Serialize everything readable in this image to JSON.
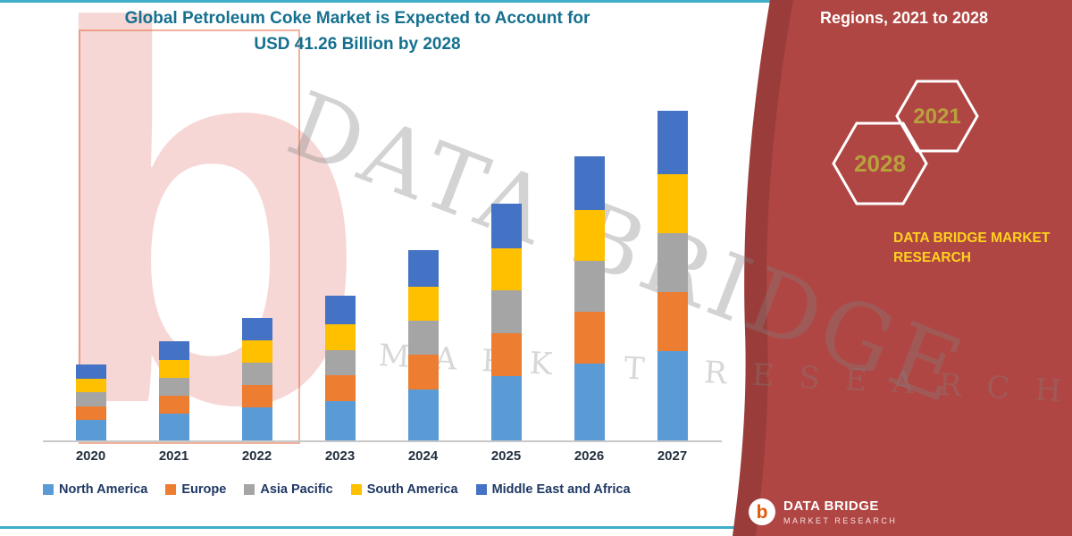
{
  "page": {
    "background": "#FFFFFF",
    "accent_line_color": "#3FAECB"
  },
  "title": {
    "line1": "Global Petroleum Coke Market is Expected to Account for",
    "line2": "USD 41.26 Billion by 2028",
    "color": "#15708F"
  },
  "chart_data": {
    "type": "bar",
    "stacked": true,
    "title": "Global Petroleum Coke Market is Expected to Account for USD 41.26 Billion by 2028",
    "categories": [
      "2020",
      "2021",
      "2022",
      "2023",
      "2024",
      "2025",
      "2026",
      "2027"
    ],
    "series": [
      {
        "name": "North America",
        "color": "#5B9BD5",
        "values": [
          2.4,
          3.1,
          3.9,
          4.6,
          6.0,
          7.5,
          9.0,
          10.4
        ]
      },
      {
        "name": "Europe",
        "color": "#ED7D31",
        "values": [
          1.6,
          2.1,
          2.6,
          3.0,
          4.0,
          5.0,
          6.0,
          6.9
        ]
      },
      {
        "name": "Asia Pacific",
        "color": "#A5A5A5",
        "values": [
          1.6,
          2.1,
          2.6,
          3.0,
          4.0,
          5.0,
          6.0,
          6.9
        ]
      },
      {
        "name": "South America",
        "color": "#FFC000",
        "values": [
          1.6,
          2.1,
          2.6,
          3.0,
          4.0,
          5.0,
          6.0,
          6.9
        ]
      },
      {
        "name": "Middle East and Africa",
        "color": "#4472C4",
        "values": [
          1.7,
          2.2,
          2.6,
          3.3,
          4.3,
          5.2,
          6.2,
          7.4
        ]
      }
    ],
    "ylim": [
      0,
      40
    ],
    "grid": false,
    "y_axis_visible": false,
    "legend_position": "bottom",
    "units": "USD Billion (estimated from bar heights; y-axis not labeled in image)"
  },
  "watermark": {
    "line1": "DATA BRIDGE",
    "line2": "MARKET RESEARCH",
    "letter": "b"
  },
  "side_panel": {
    "header": "Regions, 2021 to 2028",
    "hexagons": [
      {
        "label": "2028"
      },
      {
        "label": "2021"
      }
    ],
    "brand_line1": "DATA BRIDGE MARKET",
    "brand_line2": "RESEARCH",
    "colors": {
      "panel": "#B04643",
      "panel_edge": "#9A3735",
      "year_text": "#B8A23C",
      "brand_text": "#FFD21E",
      "header_text": "#FFFFFF"
    }
  },
  "footer_logo": {
    "b": "b",
    "name": "DATA BRIDGE",
    "sub": "MARKET RESEARCH"
  }
}
